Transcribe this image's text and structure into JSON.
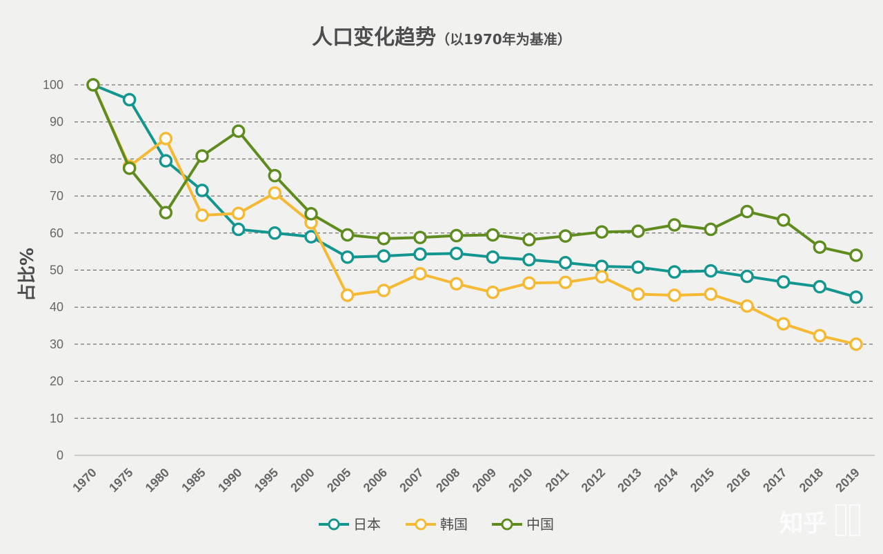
{
  "chart_data": {
    "type": "line",
    "title": "人口变化趋势",
    "subtitle": "（以1970年为基准）",
    "ylabel": "占比%",
    "xlabel": "",
    "ylim": [
      0,
      100
    ],
    "yticks": [
      0,
      10,
      20,
      30,
      40,
      50,
      60,
      70,
      80,
      90,
      100
    ],
    "grid": "horizontal dashed",
    "legend_position": "bottom",
    "categories": [
      "1970",
      "1975",
      "1980",
      "1985",
      "1990",
      "1995",
      "2000",
      "2005",
      "2006",
      "2007",
      "2008",
      "2009",
      "2010",
      "2011",
      "2012",
      "2013",
      "2014",
      "2015",
      "2016",
      "2017",
      "2018",
      "2019"
    ],
    "series": [
      {
        "name": "日本",
        "color": "#13968f",
        "values": [
          100,
          96,
          79.5,
          71.5,
          61,
          60,
          59,
          53.5,
          53.8,
          54.3,
          54.5,
          53.5,
          52.8,
          52,
          51,
          50.8,
          49.5,
          49.8,
          48.3,
          46.8,
          45.5,
          42.7
        ]
      },
      {
        "name": "韩国",
        "color": "#f5b934",
        "values": [
          100,
          78,
          85.5,
          64.8,
          65.3,
          70.8,
          62.8,
          43.2,
          44.5,
          49,
          46.3,
          44,
          46.5,
          46.7,
          48.2,
          43.5,
          43.2,
          43.5,
          40.3,
          35.5,
          32.3,
          30
        ]
      },
      {
        "name": "中国",
        "color": "#5e8c1f",
        "values": [
          100,
          77.5,
          65.5,
          80.8,
          87.5,
          75.5,
          65.2,
          59.5,
          58.5,
          58.8,
          59.3,
          59.5,
          58.2,
          59.2,
          60.3,
          60.5,
          62.2,
          61,
          65.8,
          63.5,
          56.2,
          54
        ]
      }
    ]
  },
  "watermark": {
    "text": "知乎",
    "side_text": "@温暖"
  }
}
